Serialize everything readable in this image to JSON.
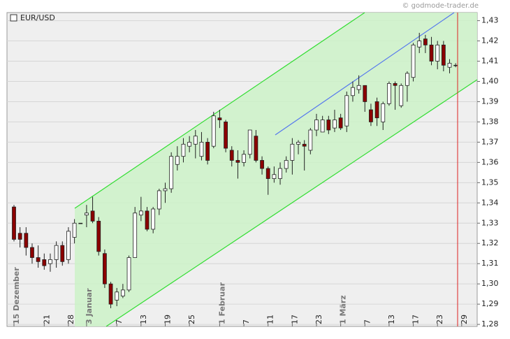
{
  "chart_data": {
    "type": "candlestick",
    "title": "EUR/USD",
    "source": "© godmode-trader.de",
    "categories": [
      "15 Dezember",
      null,
      null,
      null,
      null,
      "21",
      null,
      null,
      null,
      "28",
      null,
      null,
      "3 Januar",
      null,
      null,
      null,
      null,
      "7",
      null,
      null,
      null,
      "13",
      null,
      null,
      null,
      "19",
      null,
      null,
      null,
      "25",
      null,
      null,
      null,
      null,
      "1 Februar",
      null,
      null,
      null,
      "7",
      null,
      null,
      null,
      "11",
      null,
      null,
      null,
      "17",
      null,
      null,
      null,
      "23",
      null,
      null,
      null,
      "1 März",
      null,
      null,
      null,
      "7",
      null,
      null,
      null,
      "13",
      null,
      null,
      null,
      "17",
      null,
      null,
      null,
      "23",
      null,
      null,
      null,
      "29"
    ],
    "open": [
      1.338,
      1.325,
      1.325,
      1.318,
      1.313,
      1.312,
      1.31,
      1.312,
      1.319,
      1.312,
      1.323,
      1.33,
      1.334,
      1.336,
      1.331,
      1.315,
      1.3,
      1.292,
      1.294,
      1.297,
      1.313,
      1.334,
      1.336,
      1.327,
      1.337,
      1.346,
      1.347,
      1.359,
      1.363,
      1.368,
      1.369,
      1.363,
      1.37,
      1.368,
      1.382,
      1.38,
      1.366,
      1.361,
      1.36,
      1.364,
      1.373,
      1.361,
      1.357,
      1.352,
      1.352,
      1.357,
      1.361,
      1.369,
      1.369,
      1.366,
      1.376,
      1.375,
      1.381,
      1.377,
      1.382,
      1.378,
      1.393,
      1.396,
      1.398,
      1.386,
      1.39,
      1.38,
      1.389,
      1.399,
      1.388,
      1.398,
      1.402,
      1.417,
      1.421,
      1.418,
      1.41,
      1.418,
      1.407,
      1.408,
      null
    ],
    "high": [
      1.339,
      1.328,
      1.328,
      1.32,
      1.319,
      1.315,
      1.315,
      1.321,
      1.321,
      1.328,
      1.332,
      1.33,
      1.339,
      1.343,
      1.333,
      1.317,
      1.301,
      1.298,
      1.3,
      1.314,
      1.338,
      1.343,
      1.338,
      1.338,
      1.347,
      1.35,
      1.365,
      1.368,
      1.372,
      1.373,
      1.376,
      1.375,
      1.372,
      1.385,
      1.386,
      1.381,
      1.368,
      1.366,
      1.366,
      1.376,
      1.376,
      1.363,
      1.358,
      1.358,
      1.36,
      1.363,
      1.372,
      1.371,
      1.371,
      1.377,
      1.384,
      1.383,
      1.383,
      1.386,
      1.384,
      1.395,
      1.4,
      1.403,
      1.398,
      1.389,
      1.392,
      1.39,
      1.4,
      1.4,
      1.399,
      1.405,
      1.419,
      1.424,
      1.423,
      1.422,
      1.42,
      1.42,
      1.411,
      1.409,
      null
    ],
    "low": [
      1.321,
      1.318,
      1.314,
      1.31,
      1.308,
      1.307,
      1.306,
      1.308,
      1.309,
      1.31,
      1.32,
      1.33,
      1.328,
      1.33,
      1.314,
      1.298,
      1.288,
      1.289,
      1.293,
      1.296,
      1.313,
      1.331,
      1.326,
      1.325,
      1.334,
      1.34,
      1.345,
      1.356,
      1.36,
      1.365,
      1.362,
      1.361,
      1.359,
      1.367,
      1.377,
      1.365,
      1.358,
      1.352,
      1.358,
      1.362,
      1.36,
      1.354,
      1.344,
      1.35,
      1.349,
      1.355,
      1.354,
      1.364,
      1.356,
      1.364,
      1.373,
      1.375,
      1.374,
      1.375,
      1.376,
      1.375,
      1.39,
      1.394,
      1.385,
      1.378,
      1.378,
      1.376,
      1.388,
      1.386,
      1.387,
      1.39,
      1.4,
      1.414,
      1.414,
      1.408,
      1.406,
      1.405,
      1.404,
      1.407,
      null
    ],
    "close": [
      1.322,
      1.322,
      1.318,
      1.313,
      1.311,
      1.309,
      1.312,
      1.319,
      1.311,
      1.326,
      1.33,
      1.33,
      1.335,
      1.331,
      1.316,
      1.3,
      1.29,
      1.296,
      1.297,
      1.313,
      1.335,
      1.336,
      1.327,
      1.337,
      1.346,
      1.347,
      1.363,
      1.363,
      1.369,
      1.37,
      1.373,
      1.37,
      1.361,
      1.383,
      1.381,
      1.367,
      1.361,
      1.36,
      1.364,
      1.376,
      1.361,
      1.357,
      1.352,
      1.354,
      1.357,
      1.361,
      1.369,
      1.37,
      1.368,
      1.376,
      1.381,
      1.381,
      1.376,
      1.381,
      1.377,
      1.393,
      1.397,
      1.398,
      1.39,
      1.38,
      1.382,
      1.389,
      1.399,
      1.398,
      1.398,
      1.404,
      1.418,
      1.42,
      1.418,
      1.41,
      1.418,
      1.408,
      1.409,
      1.408,
      null
    ],
    "up_color": "#ffffff",
    "down_color": "#8b0000",
    "ylim": [
      1.279,
      1.434
    ],
    "yticks": [
      {
        "value": 1.28,
        "label": "1,28"
      },
      {
        "value": 1.29,
        "label": "1,29"
      },
      {
        "value": 1.3,
        "label": "1,30"
      },
      {
        "value": 1.31,
        "label": "1,31"
      },
      {
        "value": 1.32,
        "label": "1,32"
      },
      {
        "value": 1.33,
        "label": "1,33"
      },
      {
        "value": 1.34,
        "label": "1,34"
      },
      {
        "value": 1.35,
        "label": "1,35"
      },
      {
        "value": 1.36,
        "label": "1,36"
      },
      {
        "value": 1.37,
        "label": "1,37"
      },
      {
        "value": 1.38,
        "label": "1,38"
      },
      {
        "value": 1.39,
        "label": "1,39"
      },
      {
        "value": 1.4,
        "label": "1,40"
      },
      {
        "value": 1.41,
        "label": "1,41"
      },
      {
        "value": 1.42,
        "label": "1,42"
      },
      {
        "value": 1.43,
        "label": "1,43"
      }
    ],
    "grid": true
  }
}
